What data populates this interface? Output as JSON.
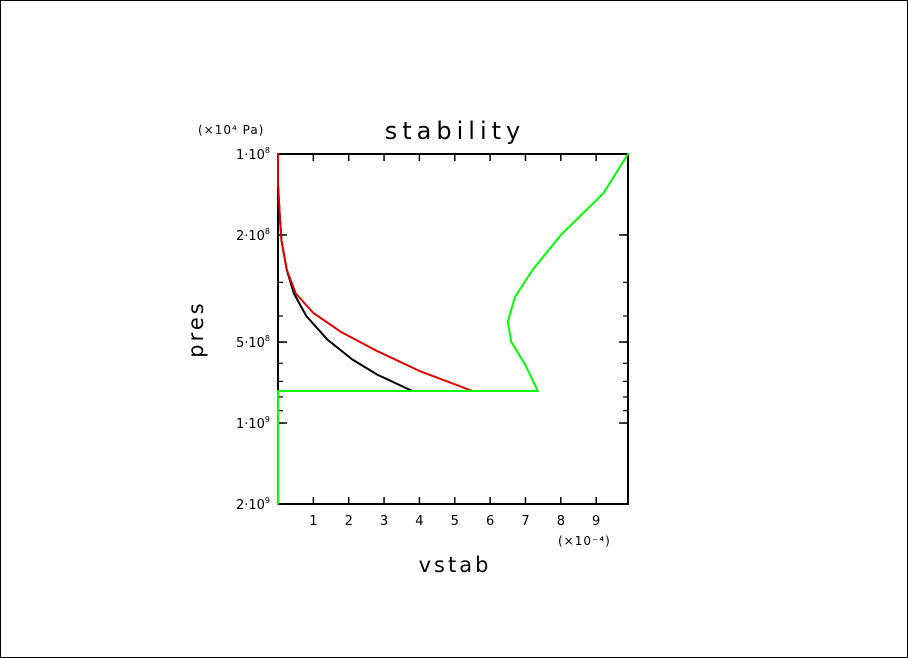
{
  "chart_data": {
    "type": "line",
    "title": "stability",
    "xlabel": "vstab",
    "ylabel": "pres",
    "x_unit": "(×10⁻⁴)",
    "y_unit": "(×10⁴ Pa)",
    "xlim": [
      0,
      9.9
    ],
    "ylim": [
      100000000,
      2000000000
    ],
    "y_scale": "log",
    "x_ticks": [
      1,
      2,
      3,
      4,
      5,
      6,
      7,
      8,
      9
    ],
    "x_tick_labels": [
      "1",
      "2",
      "3",
      "4",
      "5",
      "6",
      "7",
      "8",
      "9"
    ],
    "y_tick_labels": [
      {
        "value": 100000000,
        "mantissa": "1",
        "exp": "8"
      },
      {
        "value": 200000000,
        "mantissa": "2",
        "exp": "8"
      },
      {
        "value": 500000000,
        "mantissa": "5",
        "exp": "8"
      },
      {
        "value": 1000000000,
        "mantissa": "1",
        "exp": "9"
      },
      {
        "value": 2000000000,
        "mantissa": "2",
        "exp": "9"
      }
    ],
    "grid": false,
    "series": [
      {
        "color": "#000000",
        "points": [
          [
            0,
            100000000
          ],
          [
            0,
            130000000
          ],
          [
            0.05,
            170000000
          ],
          [
            0.1,
            210000000
          ],
          [
            0.25,
            270000000
          ],
          [
            0.45,
            330000000
          ],
          [
            0.8,
            400000000
          ],
          [
            1.4,
            490000000
          ],
          [
            2.1,
            580000000
          ],
          [
            2.8,
            660000000
          ],
          [
            3.8,
            760000000
          ]
        ]
      },
      {
        "color": "#e00000",
        "points": [
          [
            0,
            100000000
          ],
          [
            0,
            130000000
          ],
          [
            0.05,
            170000000
          ],
          [
            0.1,
            210000000
          ],
          [
            0.25,
            270000000
          ],
          [
            0.5,
            330000000
          ],
          [
            1.0,
            390000000
          ],
          [
            1.8,
            460000000
          ],
          [
            2.8,
            540000000
          ],
          [
            4.0,
            640000000
          ],
          [
            5.5,
            760000000
          ]
        ]
      },
      {
        "color": "#00ff00",
        "points": [
          [
            9.9,
            100000000
          ],
          [
            9.2,
            140000000
          ],
          [
            8.0,
            200000000
          ],
          [
            7.2,
            270000000
          ],
          [
            6.7,
            340000000
          ],
          [
            6.5,
            420000000
          ],
          [
            6.6,
            500000000
          ],
          [
            7.0,
            610000000
          ],
          [
            7.35,
            760000000
          ],
          [
            0,
            760000000
          ],
          [
            0,
            2000000000
          ]
        ]
      }
    ]
  }
}
